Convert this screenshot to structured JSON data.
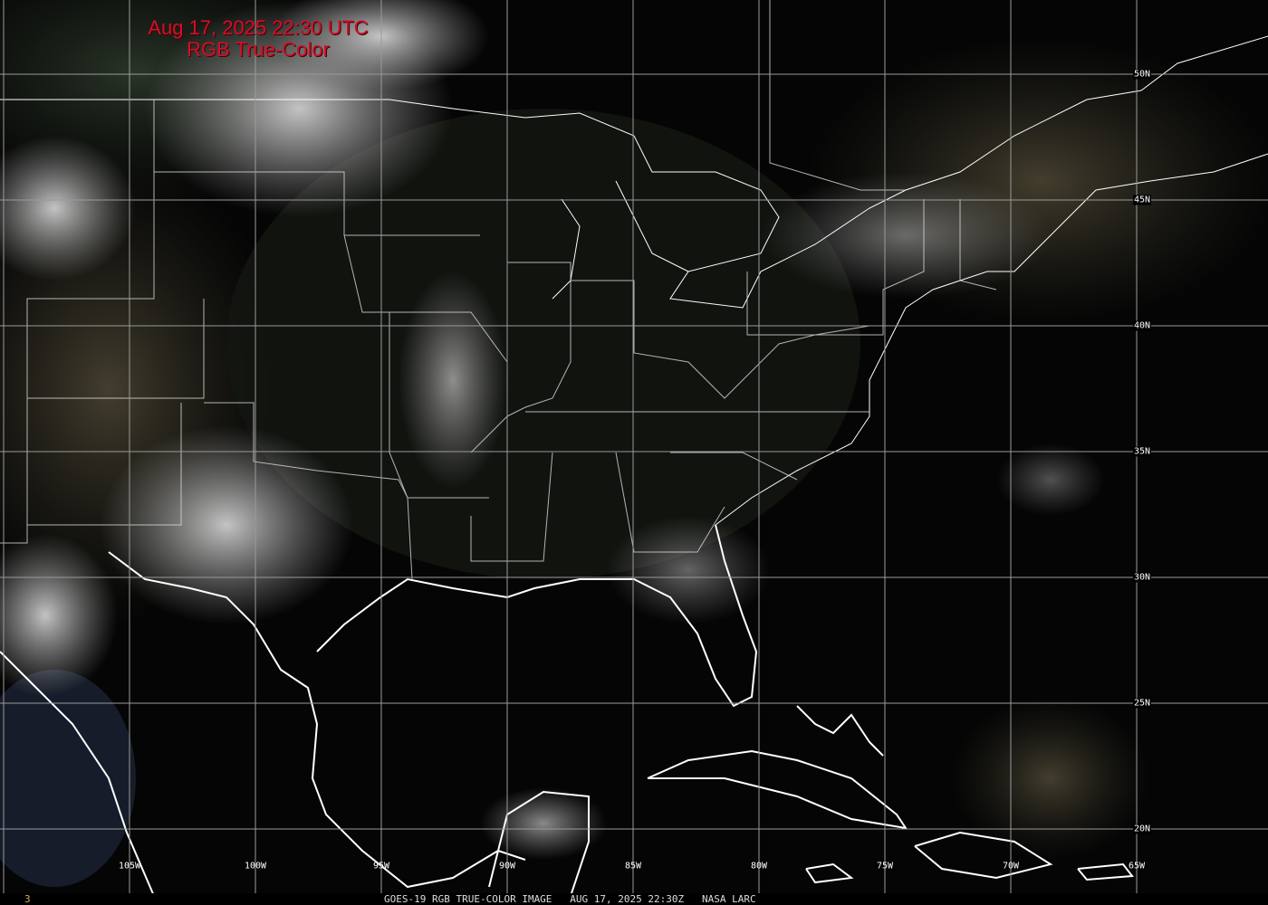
{
  "title": {
    "line1": "Aug 17, 2025 22:30 UTC",
    "line2": "RGB True-Color"
  },
  "lat_labels": [
    "50N",
    "45N",
    "40N",
    "35N",
    "30N",
    "25N",
    "20N"
  ],
  "lon_labels": [
    "105W",
    "100W",
    "95W",
    "90W",
    "85W",
    "80W",
    "75W",
    "70W",
    "65W"
  ],
  "footer": {
    "frame": "3",
    "caption": "GOES-19 RGB TRUE-COLOR IMAGE   AUG 17, 2025 22:30Z   NASA LARC"
  },
  "colors": {
    "title": "#d0102a",
    "grid": "#9a9a9a",
    "coast": "#ffffff"
  }
}
